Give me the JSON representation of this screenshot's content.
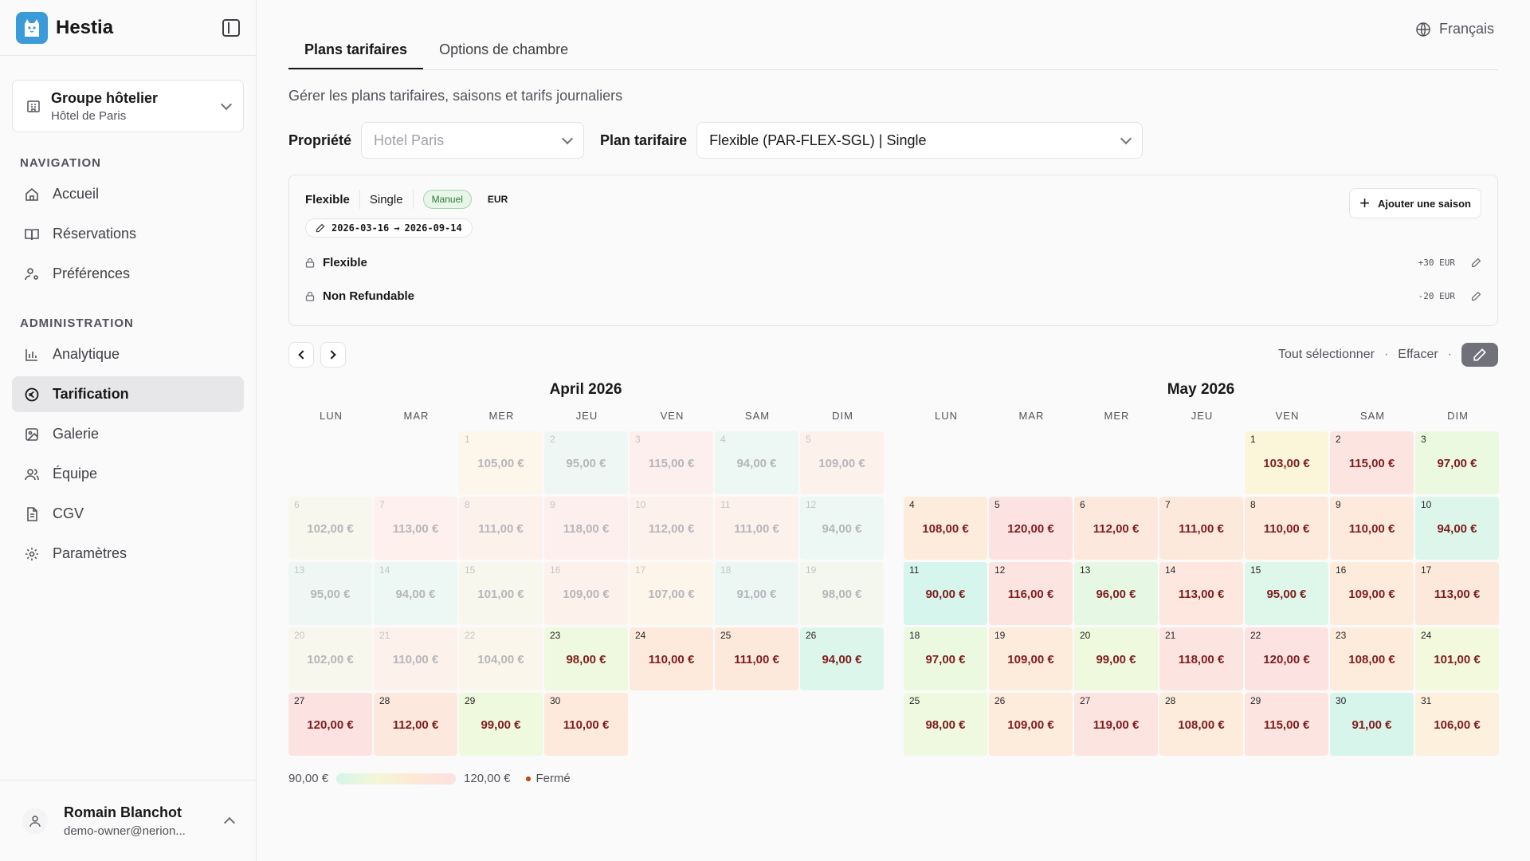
{
  "app": {
    "name": "Hestia"
  },
  "org": {
    "title": "Groupe hôtelier",
    "subtitle": "Hôtel de Paris"
  },
  "nav": {
    "section_label": "NAVIGATION",
    "items": [
      {
        "label": "Accueil",
        "icon": "home-icon"
      },
      {
        "label": "Réservations",
        "icon": "book-icon"
      },
      {
        "label": "Préférences",
        "icon": "user-settings-icon"
      }
    ]
  },
  "admin": {
    "section_label": "ADMINISTRATION",
    "items": [
      {
        "label": "Analytique",
        "icon": "chart-icon"
      },
      {
        "label": "Tarification",
        "icon": "euro-icon",
        "active": true
      },
      {
        "label": "Galerie",
        "icon": "image-icon"
      },
      {
        "label": "Équipe",
        "icon": "team-icon"
      },
      {
        "label": "CGV",
        "icon": "document-icon"
      },
      {
        "label": "Paramètres",
        "icon": "gear-icon"
      }
    ]
  },
  "user": {
    "name": "Romain Blanchot",
    "email": "demo-owner@nerion..."
  },
  "language": "Français",
  "tabs": [
    {
      "label": "Plans tarifaires",
      "active": true
    },
    {
      "label": "Options de chambre",
      "active": false
    }
  ],
  "description": "Gérer les plans tarifaires, saisons et tarifs journaliers",
  "filters": {
    "property_label": "Propriété",
    "property_value": "Hotel Paris",
    "plan_label": "Plan tarifaire",
    "plan_value": "Flexible (PAR-FLEX-SGL) | Single"
  },
  "season": {
    "name": "Flexible",
    "room": "Single",
    "mode": "Manuel",
    "currency": "EUR",
    "date_start": "2026-03-16",
    "arrow": "→",
    "date_end": "2026-09-14",
    "add_label": "Ajouter une saison",
    "rates": [
      {
        "name": "Flexible",
        "adjustment": "+30 EUR"
      },
      {
        "name": "Non Refundable",
        "adjustment": "-20 EUR"
      }
    ]
  },
  "calendar_actions": {
    "select_all": "Tout sélectionner",
    "sep": "·",
    "clear": "Effacer"
  },
  "weekdays": [
    "LUN",
    "MAR",
    "MER",
    "JEU",
    "VEN",
    "SAM",
    "DIM"
  ],
  "months": [
    {
      "title": "April 2026",
      "offset": 2,
      "days": [
        {
          "d": "1",
          "p": "105,00 €",
          "past": true,
          "c": "#fdf6ea"
        },
        {
          "d": "2",
          "p": "95,00 €",
          "past": true,
          "c": "#eef7f3"
        },
        {
          "d": "3",
          "p": "115,00 €",
          "past": true,
          "c": "#fcefee"
        },
        {
          "d": "4",
          "p": "94,00 €",
          "past": true,
          "c": "#edf7f3"
        },
        {
          "d": "5",
          "p": "109,00 €",
          "past": true,
          "c": "#fdf1ec"
        },
        {
          "d": "6",
          "p": "102,00 €",
          "past": true,
          "c": "#f8f7ee"
        },
        {
          "d": "7",
          "p": "113,00 €",
          "past": true,
          "c": "#fdf0ed"
        },
        {
          "d": "8",
          "p": "111,00 €",
          "past": true,
          "c": "#fdf1ec"
        },
        {
          "d": "9",
          "p": "118,00 €",
          "past": true,
          "c": "#fcefee"
        },
        {
          "d": "10",
          "p": "112,00 €",
          "past": true,
          "c": "#fdf1ec"
        },
        {
          "d": "11",
          "p": "111,00 €",
          "past": true,
          "c": "#fdf1ec"
        },
        {
          "d": "12",
          "p": "94,00 €",
          "past": true,
          "c": "#edf7f3"
        },
        {
          "d": "13",
          "p": "95,00 €",
          "past": true,
          "c": "#eef7f3"
        },
        {
          "d": "14",
          "p": "94,00 €",
          "past": true,
          "c": "#edf7f3"
        },
        {
          "d": "15",
          "p": "101,00 €",
          "past": true,
          "c": "#f7f7ee"
        },
        {
          "d": "16",
          "p": "109,00 €",
          "past": true,
          "c": "#fdf1ec"
        },
        {
          "d": "17",
          "p": "107,00 €",
          "past": true,
          "c": "#fdf4ea"
        },
        {
          "d": "18",
          "p": "91,00 €",
          "past": true,
          "c": "#ecf7f4"
        },
        {
          "d": "19",
          "p": "98,00 €",
          "past": true,
          "c": "#f3f7ee"
        },
        {
          "d": "20",
          "p": "102,00 €",
          "past": true,
          "c": "#f8f7ee"
        },
        {
          "d": "21",
          "p": "110,00 €",
          "past": true,
          "c": "#fdf1ec"
        },
        {
          "d": "22",
          "p": "104,00 €",
          "past": true,
          "c": "#fbf6eb"
        },
        {
          "d": "23",
          "p": "98,00 €",
          "past": false,
          "c": "#eef9df"
        },
        {
          "d": "24",
          "p": "110,00 €",
          "past": false,
          "c": "#fdeadc"
        },
        {
          "d": "25",
          "p": "111,00 €",
          "past": false,
          "c": "#fde9dc"
        },
        {
          "d": "26",
          "p": "94,00 €",
          "past": false,
          "c": "#dcf6ec"
        },
        {
          "d": "27",
          "p": "120,00 €",
          "past": false,
          "c": "#fce3e2"
        },
        {
          "d": "28",
          "p": "112,00 €",
          "past": false,
          "c": "#fde8dd"
        },
        {
          "d": "29",
          "p": "99,00 €",
          "past": false,
          "c": "#eff9dd"
        },
        {
          "d": "30",
          "p": "110,00 €",
          "past": false,
          "c": "#fdeadc"
        }
      ]
    },
    {
      "title": "May 2026",
      "offset": 4,
      "days": [
        {
          "d": "1",
          "p": "103,00 €",
          "past": false,
          "c": "#fbf6da"
        },
        {
          "d": "2",
          "p": "115,00 €",
          "past": false,
          "c": "#fce5e0"
        },
        {
          "d": "3",
          "p": "97,00 €",
          "past": false,
          "c": "#ecf9e1"
        },
        {
          "d": "4",
          "p": "108,00 €",
          "past": false,
          "c": "#fdecdb"
        },
        {
          "d": "5",
          "p": "120,00 €",
          "past": false,
          "c": "#fce3e2"
        },
        {
          "d": "6",
          "p": "112,00 €",
          "past": false,
          "c": "#fde8dd"
        },
        {
          "d": "7",
          "p": "111,00 €",
          "past": false,
          "c": "#fde9dc"
        },
        {
          "d": "8",
          "p": "110,00 €",
          "past": false,
          "c": "#fdeadc"
        },
        {
          "d": "9",
          "p": "110,00 €",
          "past": false,
          "c": "#fdeadc"
        },
        {
          "d": "10",
          "p": "94,00 €",
          "past": false,
          "c": "#dcf6ec"
        },
        {
          "d": "11",
          "p": "90,00 €",
          "past": false,
          "c": "#d6f5ec"
        },
        {
          "d": "12",
          "p": "116,00 €",
          "past": false,
          "c": "#fce5e0"
        },
        {
          "d": "13",
          "p": "96,00 €",
          "past": false,
          "c": "#e6f8e4"
        },
        {
          "d": "14",
          "p": "113,00 €",
          "past": false,
          "c": "#fde7de"
        },
        {
          "d": "15",
          "p": "95,00 €",
          "past": false,
          "c": "#dff7ea"
        },
        {
          "d": "16",
          "p": "109,00 €",
          "past": false,
          "c": "#fdebdb"
        },
        {
          "d": "17",
          "p": "113,00 €",
          "past": false,
          "c": "#fde9dc"
        },
        {
          "d": "18",
          "p": "97,00 €",
          "past": false,
          "c": "#ecf9e1"
        },
        {
          "d": "19",
          "p": "109,00 €",
          "past": false,
          "c": "#fdebdb"
        },
        {
          "d": "20",
          "p": "99,00 €",
          "past": false,
          "c": "#eff9dd"
        },
        {
          "d": "21",
          "p": "118,00 €",
          "past": false,
          "c": "#fce4e1"
        },
        {
          "d": "22",
          "p": "120,00 €",
          "past": false,
          "c": "#fce3e2"
        },
        {
          "d": "23",
          "p": "108,00 €",
          "past": false,
          "c": "#fdecdb"
        },
        {
          "d": "24",
          "p": "101,00 €",
          "past": false,
          "c": "#f3f9dc"
        },
        {
          "d": "25",
          "p": "98,00 €",
          "past": false,
          "c": "#eef9df"
        },
        {
          "d": "26",
          "p": "109,00 €",
          "past": false,
          "c": "#fdebdb"
        },
        {
          "d": "27",
          "p": "119,00 €",
          "past": false,
          "c": "#fce4e1"
        },
        {
          "d": "28",
          "p": "108,00 €",
          "past": false,
          "c": "#fdecdb"
        },
        {
          "d": "29",
          "p": "115,00 €",
          "past": false,
          "c": "#fce5e0"
        },
        {
          "d": "30",
          "p": "91,00 €",
          "past": false,
          "c": "#d8f5ec"
        },
        {
          "d": "31",
          "p": "106,00 €",
          "past": false,
          "c": "#fdf0dc"
        }
      ]
    }
  ],
  "legend": {
    "min": "90,00 €",
    "max": "120,00 €",
    "closed": "Fermé"
  }
}
